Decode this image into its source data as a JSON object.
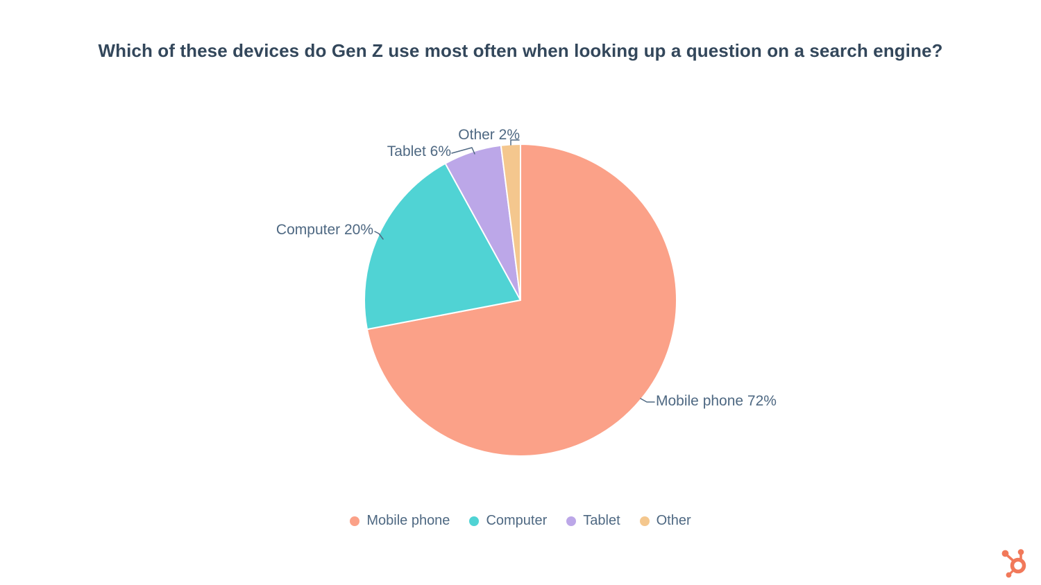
{
  "chart_data": {
    "type": "pie",
    "title": "Which of these devices do Gen Z use most often when looking up a question on a search engine?",
    "categories": [
      "Mobile phone",
      "Computer",
      "Tablet",
      "Other"
    ],
    "values": [
      72,
      20,
      6,
      2
    ],
    "unit": "%",
    "colors": [
      "#FBA188",
      "#50D3D4",
      "#BCA7E8",
      "#F4C78E"
    ],
    "callout_labels": [
      "Mobile phone 72%",
      "Computer 20%",
      "Tablet 6%",
      "Other 2%"
    ],
    "start_angle": "top",
    "direction": "clockwise",
    "legend": {
      "position": "bottom",
      "items": [
        "Mobile phone",
        "Computer",
        "Tablet",
        "Other"
      ]
    },
    "title_color": "#33475B",
    "label_color": "#4E6882",
    "separator_color": "#FFFFFF"
  },
  "branding": {
    "logo": "hubspot-sprocket-logo",
    "color": "#F1795A"
  }
}
